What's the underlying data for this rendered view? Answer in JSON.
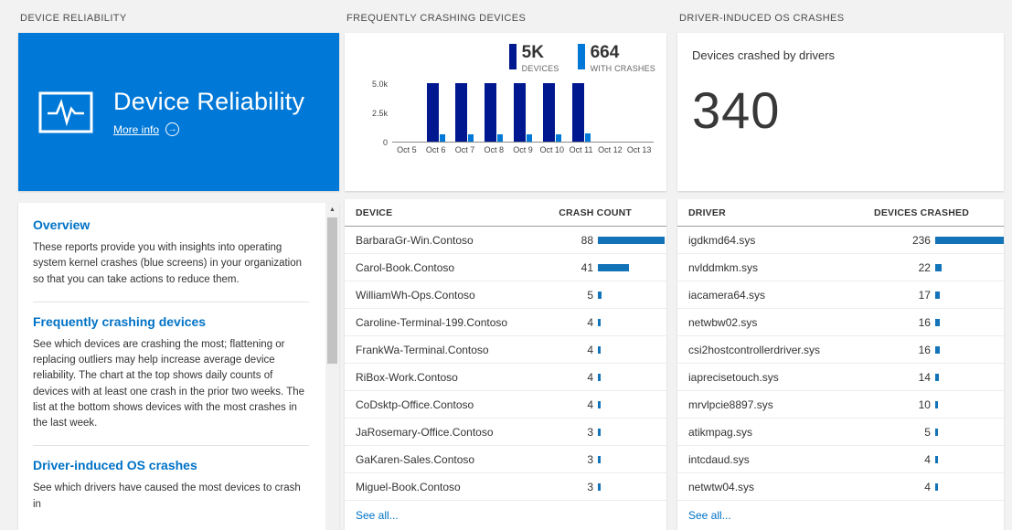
{
  "colors": {
    "tile_blue": "#0078d7",
    "heading_blue": "#0072c6",
    "chart_dark_bar": "#00188f",
    "chart_light_bar": "#0078d7",
    "table_bar": "#1373b8"
  },
  "reliability": {
    "header": "DEVICE RELIABILITY",
    "tile": {
      "title": "Device Reliability",
      "more_info_label": "More info"
    },
    "sections": [
      {
        "title": "Overview",
        "body": "These reports provide you with insights into operating system kernel crashes (blue screens) in your organization so that you can take actions to reduce them."
      },
      {
        "title": "Frequently crashing devices",
        "body": "See which devices are crashing the most; flattening or replacing outliers may help increase average device reliability. The chart at the top shows daily counts of devices with at least one crash in the prior two weeks. The list at the bottom shows devices with the most crashes in the last week."
      },
      {
        "title": "Driver-induced OS crashes",
        "body": "See which drivers have caused the most devices to crash in"
      }
    ]
  },
  "devices": {
    "header": "FREQUENTLY CRASHING DEVICES",
    "table": {
      "columns": [
        "DEVICE",
        "CRASH COUNT"
      ],
      "rows": [
        {
          "name": "BarbaraGr-Win.Contoso",
          "value": 88
        },
        {
          "name": "Carol-Book.Contoso",
          "value": 41
        },
        {
          "name": "WilliamWh-Ops.Contoso",
          "value": 5
        },
        {
          "name": "Caroline-Terminal-199.Contoso",
          "value": 4
        },
        {
          "name": "FrankWa-Terminal.Contoso",
          "value": 4
        },
        {
          "name": "RiBox-Work.Contoso",
          "value": 4
        },
        {
          "name": "CoDsktp-Office.Contoso",
          "value": 4
        },
        {
          "name": "JaRosemary-Office.Contoso",
          "value": 3
        },
        {
          "name": "GaKaren-Sales.Contoso",
          "value": 3
        },
        {
          "name": "Miguel-Book.Contoso",
          "value": 3
        }
      ],
      "see_all": "See all..."
    }
  },
  "drivers": {
    "header": "DRIVER-INDUCED OS CRASHES",
    "summary_label": "Devices crashed by drivers",
    "summary_value": "340",
    "table": {
      "columns": [
        "DRIVER",
        "DEVICES CRASHED"
      ],
      "rows": [
        {
          "name": "igdkmd64.sys",
          "value": 236
        },
        {
          "name": "nvlddmkm.sys",
          "value": 22
        },
        {
          "name": "iacamera64.sys",
          "value": 17
        },
        {
          "name": "netwbw02.sys",
          "value": 16
        },
        {
          "name": "csi2hostcontrollerdriver.sys",
          "value": 16
        },
        {
          "name": "iaprecisetouch.sys",
          "value": 14
        },
        {
          "name": "mrvlpcie8897.sys",
          "value": 10
        },
        {
          "name": "atikmpag.sys",
          "value": 5
        },
        {
          "name": "intcdaud.sys",
          "value": 4
        },
        {
          "name": "netwtw04.sys",
          "value": 4
        }
      ],
      "see_all": "See all..."
    }
  },
  "chart_data": {
    "type": "bar",
    "categories": [
      "Oct 5",
      "Oct 6",
      "Oct 7",
      "Oct 8",
      "Oct 9",
      "Oct 10",
      "Oct 11",
      "Oct 12",
      "Oct 13"
    ],
    "series": [
      {
        "name": "Devices",
        "color": "#00188f",
        "values": [
          0,
          5000,
          5000,
          5000,
          5000,
          5000,
          5000,
          0,
          0
        ]
      },
      {
        "name": "With crashes",
        "color": "#0078d7",
        "values": [
          0,
          650,
          620,
          640,
          630,
          660,
          680,
          0,
          0
        ]
      }
    ],
    "ylim": [
      0,
      5000
    ],
    "yticks": [
      "5.0k",
      "2.5k",
      "0"
    ],
    "xlabel": "",
    "ylabel": "",
    "grid": false,
    "legend_position": "top-right",
    "legend": [
      {
        "value": "5K",
        "label": "DEVICES"
      },
      {
        "value": "664",
        "label": "WITH CRASHES"
      }
    ]
  }
}
